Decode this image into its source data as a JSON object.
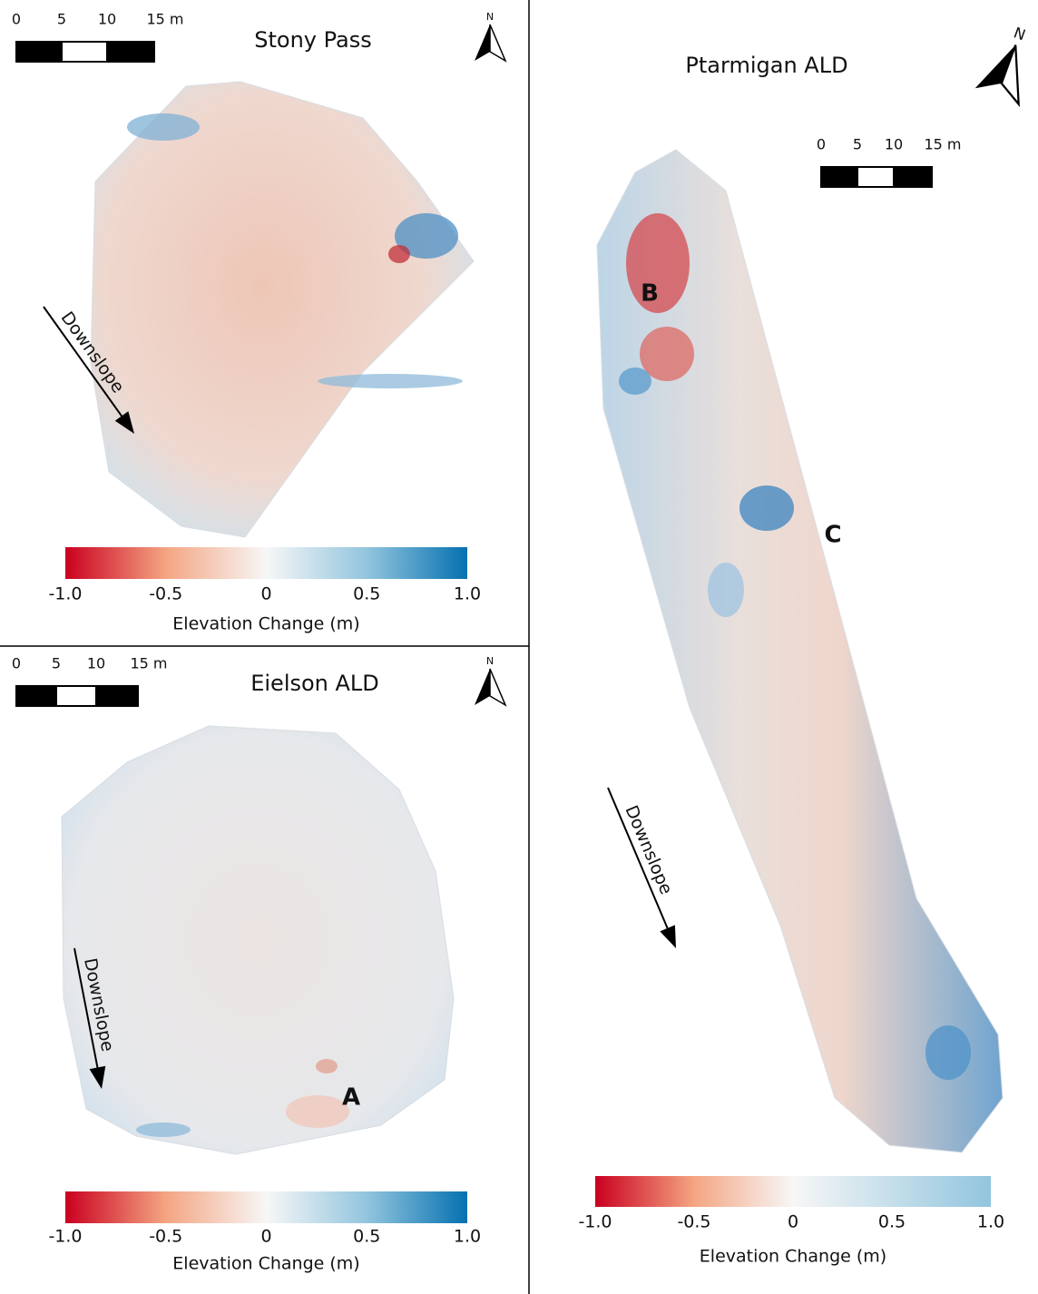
{
  "panels": [
    {
      "title": "Stony Pass",
      "scale_bar": [
        "0",
        "5",
        "10",
        "15 m"
      ],
      "north": "N",
      "downslope": "Downslope",
      "colorbar": {
        "ticks": [
          "-1.0",
          "-0.5",
          "0",
          "0.5",
          "1.0"
        ],
        "label": "Elevation Change (m)"
      },
      "annotations": []
    },
    {
      "title": "Eielson ALD",
      "scale_bar": [
        "0",
        "5",
        "10",
        "15 m"
      ],
      "north": "N",
      "downslope": "Downslope",
      "colorbar": {
        "ticks": [
          "-1.0",
          "-0.5",
          "0",
          "0.5",
          "1.0"
        ],
        "label": "Elevation Change (m)"
      },
      "annotations": [
        "A"
      ]
    },
    {
      "title": "Ptarmigan ALD",
      "scale_bar": [
        "0",
        "5",
        "10",
        "15 m"
      ],
      "north": "N",
      "downslope": "Downslope",
      "colorbar": {
        "ticks": [
          "-1.0",
          "-0.5",
          "0",
          "0.5",
          "1.0"
        ],
        "label": "Elevation Change (m)"
      },
      "annotations": [
        "B",
        "C"
      ]
    }
  ]
}
